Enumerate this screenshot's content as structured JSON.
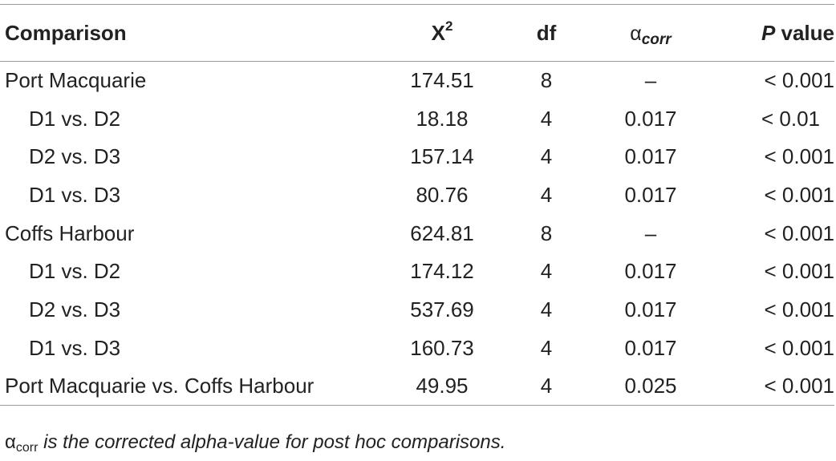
{
  "header": {
    "comparison": "Comparison",
    "chi": "X",
    "chi_sup": "2",
    "df": "df",
    "alpha_symbol": "α",
    "alpha_sub": "corr",
    "p_italic": "P",
    "p_rest": " value"
  },
  "rows": [
    {
      "comparison": "Port Macquarie",
      "chi": "174.51",
      "df": "8",
      "alpha": "–",
      "p": "< 0.001"
    },
    {
      "comparison": "D1 vs. D2",
      "chi": "18.18",
      "df": "4",
      "alpha": "0.017",
      "p": "< 0.01"
    },
    {
      "comparison": "D2 vs. D3",
      "chi": "157.14",
      "df": "4",
      "alpha": "0.017",
      "p": "< 0.001"
    },
    {
      "comparison": "D1 vs. D3",
      "chi": "80.76",
      "df": "4",
      "alpha": "0.017",
      "p": "< 0.001"
    },
    {
      "comparison": "Coffs Harbour",
      "chi": "624.81",
      "df": "8",
      "alpha": "–",
      "p": "< 0.001"
    },
    {
      "comparison": "D1 vs. D2",
      "chi": "174.12",
      "df": "4",
      "alpha": "0.017",
      "p": "< 0.001"
    },
    {
      "comparison": "D2 vs. D3",
      "chi": "537.69",
      "df": "4",
      "alpha": "0.017",
      "p": "< 0.001"
    },
    {
      "comparison": "D1 vs. D3",
      "chi": "160.73",
      "df": "4",
      "alpha": "0.017",
      "p": "< 0.001"
    },
    {
      "comparison": "Port Macquarie vs. Coffs Harbour",
      "chi": "49.95",
      "df": "4",
      "alpha": "0.025",
      "p": "< 0.001"
    }
  ],
  "footnote": {
    "symbol": "α",
    "sub": "corr",
    "text": " is the corrected alpha-value for post hoc comparisons."
  }
}
